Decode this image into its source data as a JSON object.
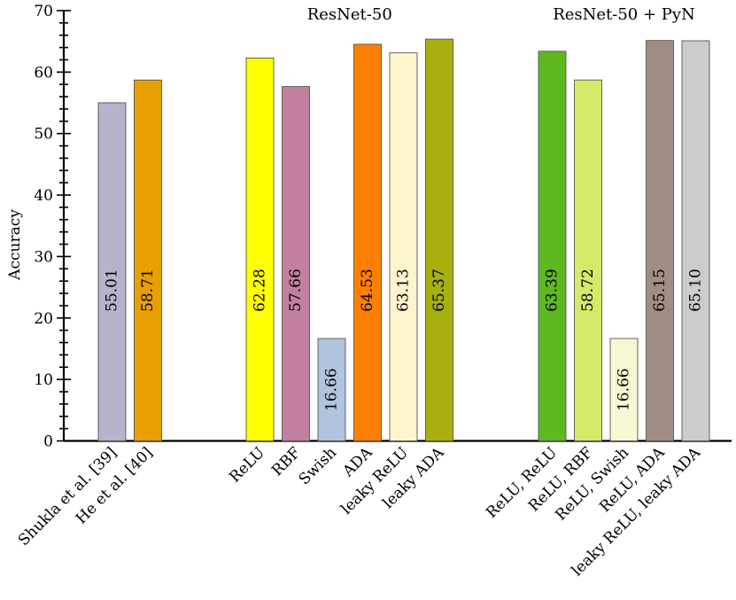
{
  "chart_data": {
    "type": "bar",
    "title": "",
    "xlabel": "",
    "ylabel": "Accuracy",
    "ylim": [
      0,
      70
    ],
    "yticks": [
      0,
      10,
      20,
      30,
      40,
      50,
      60,
      70
    ],
    "grid": false,
    "legend": "none",
    "groups": [
      {
        "title": "",
        "bars": [
          {
            "label": "Shukla et al. [39]",
            "value": 55.01,
            "value_label": "55.01",
            "color": "#b7b3cc"
          },
          {
            "label": "He et al. [40]",
            "value": 58.71,
            "value_label": "58.71",
            "color": "#e8a000"
          }
        ]
      },
      {
        "title": "ResNet-50",
        "bars": [
          {
            "label": "ReLU",
            "value": 62.28,
            "value_label": "62.28",
            "color": "#ffff00"
          },
          {
            "label": "RBF",
            "value": 57.66,
            "value_label": "57.66",
            "color": "#c0809e"
          },
          {
            "label": "Swish",
            "value": 16.66,
            "value_label": "16.66",
            "color": "#b0c4de"
          },
          {
            "label": "ADA",
            "value": 64.53,
            "value_label": "64.53",
            "color": "#ff8000"
          },
          {
            "label": "leaky ReLU",
            "value": 63.13,
            "value_label": "63.13",
            "color": "#fff5cc"
          },
          {
            "label": "leaky ADA",
            "value": 65.37,
            "value_label": "65.37",
            "color": "#a8b010"
          }
        ]
      },
      {
        "title": "ResNet-50 + PyN",
        "bars": [
          {
            "label": "ReLU, ReLU",
            "value": 63.39,
            "value_label": "63.39",
            "color": "#5eb820"
          },
          {
            "label": "ReLU, RBF",
            "value": 58.72,
            "value_label": "58.72",
            "color": "#d6ea6a"
          },
          {
            "label": "ReLU, Swish",
            "value": 16.66,
            "value_label": "16.66",
            "color": "#f7f7d2"
          },
          {
            "label": "ReLU, ADA",
            "value": 65.15,
            "value_label": "65.15",
            "color": "#a08e86"
          },
          {
            "label": "leaky ReLU, leaky ADA",
            "value": 65.1,
            "value_label": "65.10",
            "color": "#cccccc"
          }
        ]
      }
    ]
  }
}
